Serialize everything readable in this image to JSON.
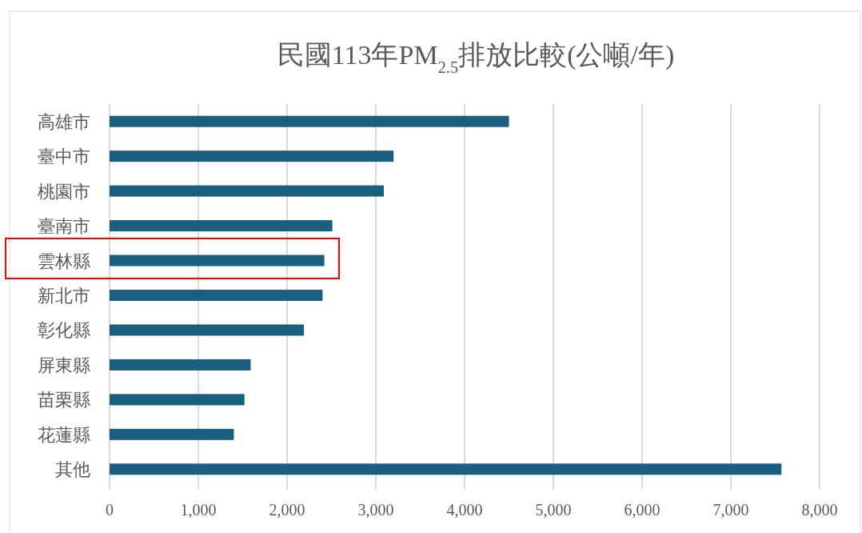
{
  "chart_data": {
    "type": "bar",
    "orientation": "horizontal",
    "title": "民國113年PM$_{2.5}$排放比較(公噸/年)",
    "categories": [
      "高雄市",
      "臺中市",
      "桃園市",
      "臺南市",
      "雲林縣",
      "新北市",
      "彰化縣",
      "屏東縣",
      "苗栗縣",
      "花蓮縣",
      "其他"
    ],
    "values": [
      4500,
      3200,
      3090,
      2510,
      2420,
      2400,
      2190,
      1590,
      1520,
      1400,
      7570
    ],
    "color": "#1a5f80",
    "xlim": [
      0,
      8000
    ],
    "xticks": [
      0,
      {
        "value": 1000,
        "label": "1,000"
      },
      {
        "value": 2000,
        "label": "2,000"
      },
      {
        "value": 3000,
        "label": "3,000"
      },
      {
        "value": 4000,
        "label": "4,000"
      },
      {
        "value": 5000,
        "label": "5,000"
      },
      {
        "value": 6000,
        "label": "6,000"
      },
      {
        "value": 7000,
        "label": "7,000"
      },
      {
        "value": 8000,
        "label": "8,000"
      }
    ],
    "grid": "x"
  }
}
